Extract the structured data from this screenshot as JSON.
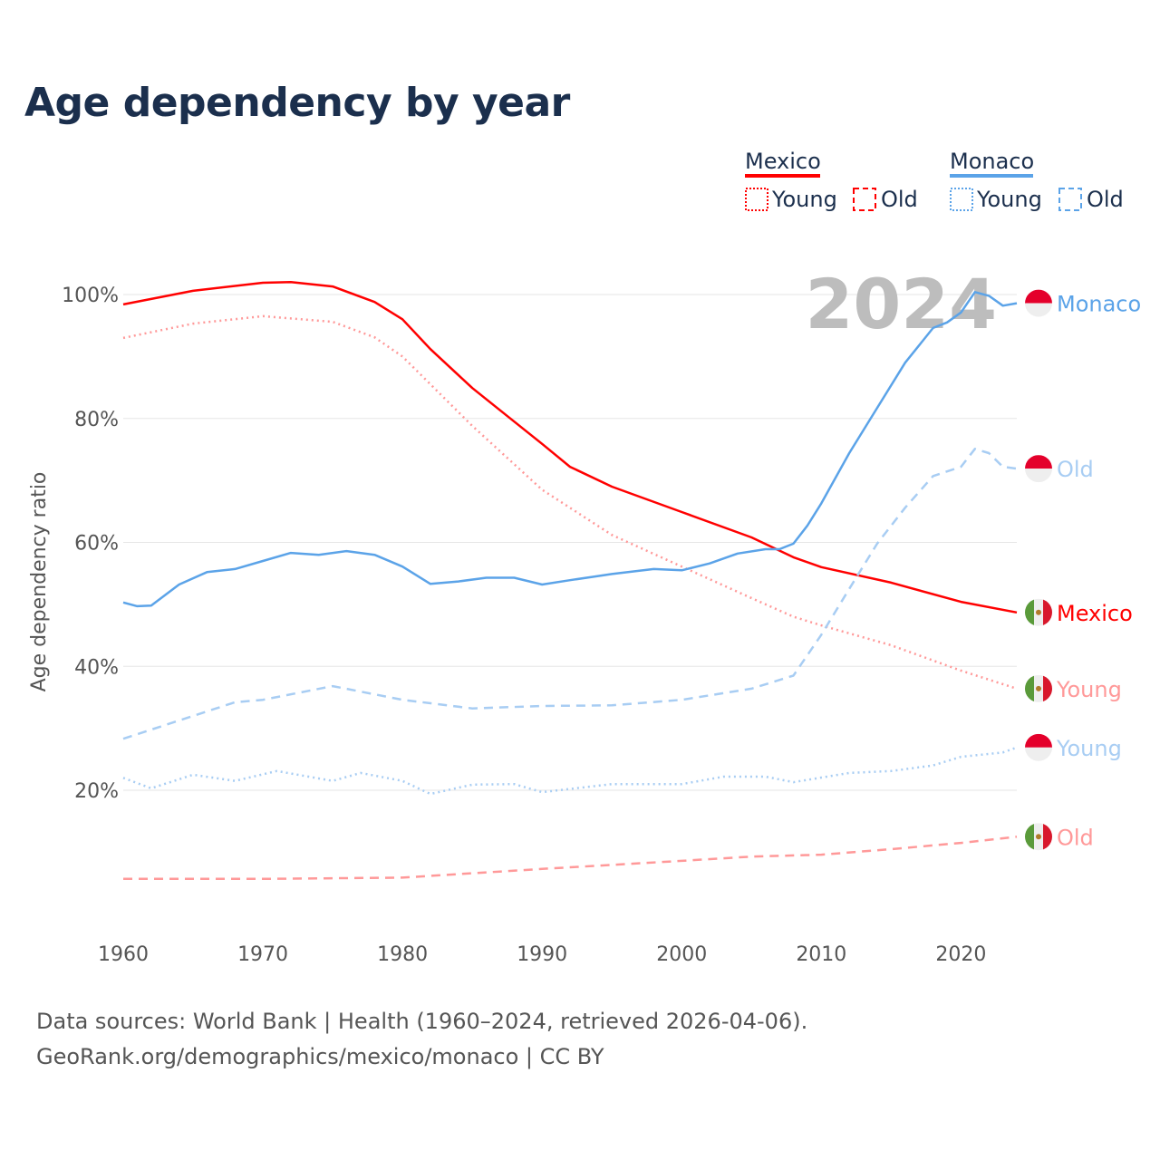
{
  "chart_data": {
    "type": "line",
    "title": "Age dependency by year",
    "xlabel": "",
    "ylabel": "Age dependency ratio",
    "xlim": [
      1960,
      2024
    ],
    "ylim": [
      0,
      100
    ],
    "x_ticks": [
      "1960",
      "1970",
      "1980",
      "1990",
      "2000",
      "2010",
      "2020"
    ],
    "y_ticks": [
      "20%",
      "40%",
      "60%",
      "80%",
      "100%"
    ],
    "grid": true,
    "year_label": "2024",
    "legend": {
      "placement": "top-right",
      "groups": [
        {
          "name": "Mexico",
          "young": "Young",
          "old": "Old",
          "color": "#ff0000"
        },
        {
          "name": "Monaco",
          "young": "Young",
          "old": "Old",
          "color": "#5ba3e8"
        }
      ]
    },
    "series": [
      {
        "name": "Mexico",
        "end_label": "Mexico",
        "country": "mexico",
        "style": "solid",
        "color": "#ff0000",
        "x": [
          1960,
          1965,
          1970,
          1972,
          1975,
          1978,
          1980,
          1982,
          1985,
          1988,
          1990,
          1992,
          1995,
          2000,
          2005,
          2008,
          2010,
          2015,
          2020,
          2024
        ],
        "y": [
          98.4,
          100.6,
          101.9,
          102,
          101.3,
          98.8,
          96,
          91.2,
          84.9,
          79.5,
          75.9,
          72.2,
          69,
          64.9,
          60.8,
          57.6,
          56,
          53.5,
          50.4,
          48.7
        ]
      },
      {
        "name": "Mexico Young",
        "end_label": "Young",
        "country": "mexico",
        "style": "dotted",
        "color": "#ff9999",
        "x": [
          1960,
          1965,
          1970,
          1975,
          1978,
          1980,
          1985,
          1990,
          1995,
          2000,
          2005,
          2008,
          2010,
          2015,
          2020,
          2024
        ],
        "y": [
          93,
          95.3,
          96.5,
          95.6,
          93.1,
          90,
          78.8,
          68.5,
          61.2,
          56.1,
          51,
          48,
          46.6,
          43.4,
          39.3,
          36.4
        ]
      },
      {
        "name": "Mexico Old",
        "end_label": "Old",
        "country": "mexico",
        "style": "dashed",
        "color": "#ff9999",
        "x": [
          1960,
          1970,
          1980,
          1990,
          2000,
          2005,
          2010,
          2015,
          2020,
          2024
        ],
        "y": [
          5.7,
          5.7,
          5.9,
          7.3,
          8.6,
          9.3,
          9.6,
          10.5,
          11.5,
          12.5
        ]
      },
      {
        "name": "Monaco",
        "end_label": "Monaco",
        "country": "monaco",
        "style": "solid",
        "color": "#5ba3e8",
        "x": [
          1960,
          1961,
          1962,
          1964,
          1966,
          1968,
          1970,
          1972,
          1974,
          1976,
          1978,
          1980,
          1982,
          1984,
          1986,
          1988,
          1990,
          1992,
          1995,
          1998,
          2000,
          2002,
          2004,
          2006,
          2007,
          2008,
          2009,
          2010,
          2012,
          2014,
          2016,
          2018,
          2019,
          2020,
          2021,
          2022,
          2023,
          2024
        ],
        "y": [
          50.3,
          49.7,
          49.8,
          53.2,
          55.2,
          55.7,
          57,
          58.3,
          58,
          58.6,
          58,
          56.1,
          53.3,
          53.7,
          54.3,
          54.3,
          53.2,
          53.9,
          54.9,
          55.7,
          55.5,
          56.6,
          58.2,
          58.9,
          58.9,
          59.8,
          62.7,
          66.3,
          74.4,
          81.7,
          89,
          94.6,
          95.5,
          97.1,
          100.4,
          99.8,
          98.2,
          98.6
        ]
      },
      {
        "name": "Monaco Old",
        "end_label": "Old",
        "country": "monaco",
        "style": "dashed",
        "color": "#a8cdf3",
        "x": [
          1960,
          1965,
          1968,
          1970,
          1975,
          1980,
          1985,
          1990,
          1995,
          2000,
          2005,
          2008,
          2010,
          2012,
          2014,
          2016,
          2018,
          2020,
          2021,
          2022,
          2023,
          2024
        ],
        "y": [
          28.3,
          32,
          34.2,
          34.6,
          36.8,
          34.6,
          33.2,
          33.6,
          33.7,
          34.6,
          36.4,
          38.5,
          45.1,
          52.5,
          59.8,
          65.6,
          70.7,
          72.2,
          75.1,
          74.4,
          72.2,
          71.9
        ]
      },
      {
        "name": "Monaco Young",
        "end_label": "Young",
        "country": "monaco",
        "style": "dotted",
        "color": "#a8cdf3",
        "x": [
          1960,
          1962,
          1965,
          1968,
          1971,
          1975,
          1977,
          1980,
          1982,
          1985,
          1988,
          1990,
          1995,
          2000,
          2003,
          2006,
          2008,
          2012,
          2015,
          2018,
          2020,
          2023,
          2024
        ],
        "y": [
          22,
          20.3,
          22.5,
          21.5,
          23.1,
          21.5,
          22.8,
          21.5,
          19.4,
          20.9,
          21,
          19.7,
          21,
          21,
          22.2,
          22.2,
          21.3,
          22.8,
          23.1,
          24,
          25.4,
          26.1,
          26.9
        ]
      }
    ]
  },
  "source": {
    "line1": "Data sources: World Bank | Health (1960–2024, retrieved 2026-04-06).",
    "line2": "GeoRank.org/demographics/mexico/monaco | CC BY"
  }
}
